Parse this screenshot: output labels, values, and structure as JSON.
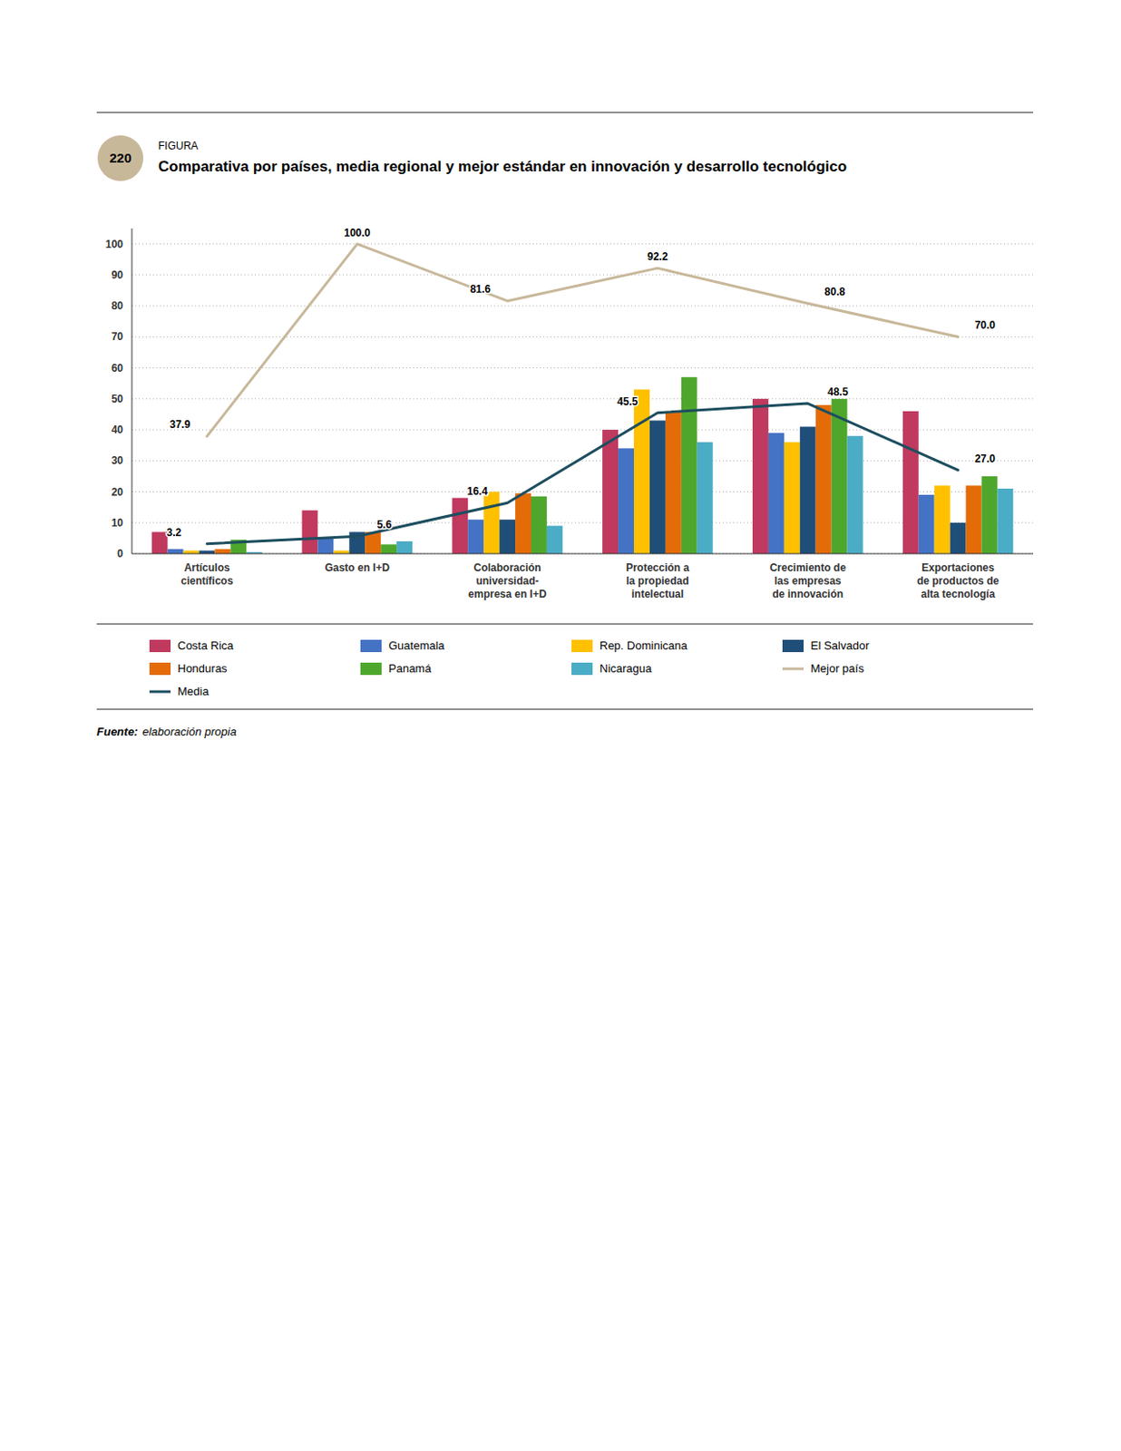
{
  "chart_data": {
    "type": "bar",
    "title": "Comparativa por países, media regional y mejor estándar en innovación y desarrollo tecnológico",
    "annotations": [
      "220",
      "FIGURA",
      "Fuente:",
      "elaboración propia"
    ],
    "categories": [
      "Artículos\ncientíficos",
      "Gasto en I+D",
      "Colaboración\nuniversidad-\nempresa en I+D",
      "Protección a\nla propiedad\nintelectual",
      "Crecimiento de\nlas empresas\nde innovación",
      "Exportaciones\nde productos de\nalta tecnología"
    ],
    "series": [
      {
        "name": "Costa Rica",
        "type": "bar",
        "color": "#c0395e",
        "values": [
          7.0,
          14.0,
          18.0,
          40.0,
          50.0,
          46.0
        ]
      },
      {
        "name": "Guatemala",
        "type": "bar",
        "color": "#4472c4",
        "values": [
          1.5,
          5.0,
          11.0,
          34.0,
          39.0,
          19.0
        ]
      },
      {
        "name": "Rep. Dominicana",
        "type": "bar",
        "color": "#ffc000",
        "values": [
          1.0,
          1.0,
          20.0,
          53.0,
          36.0,
          22.0
        ]
      },
      {
        "name": "El Salvador",
        "type": "bar",
        "color": "#1f4e79",
        "values": [
          1.0,
          7.0,
          11.0,
          43.0,
          41.0,
          10.0
        ]
      },
      {
        "name": "Honduras",
        "type": "bar",
        "color": "#e36c09",
        "values": [
          1.5,
          7.0,
          19.5,
          46.0,
          48.0,
          22.0
        ]
      },
      {
        "name": "Panamá",
        "type": "bar",
        "color": "#4ea72c",
        "values": [
          4.5,
          3.0,
          18.5,
          57.0,
          50.0,
          25.0
        ]
      },
      {
        "name": "Nicaragua",
        "type": "bar",
        "color": "#4bacc6",
        "values": [
          0.5,
          4.0,
          9.0,
          36.0,
          38.0,
          21.0
        ]
      },
      {
        "name": "Mejor país",
        "type": "line",
        "color": "#c8b89a",
        "data_labels": true,
        "values": [
          37.9,
          100.0,
          81.6,
          92.2,
          80.8,
          70.0
        ],
        "value_labels": [
          "37.9",
          "100.0",
          "81.6",
          "92.2",
          "80.8",
          "70.0"
        ]
      },
      {
        "name": "Media",
        "type": "line",
        "color": "#1d4e5f",
        "data_labels": true,
        "values": [
          3.2,
          5.6,
          16.4,
          45.5,
          48.5,
          27.0
        ],
        "value_labels": [
          "3.2",
          "5.6",
          "16.4",
          "45.5",
          "48.5",
          "27.0"
        ]
      }
    ],
    "ylim": [
      0,
      105
    ],
    "yticks": [
      0,
      10,
      20,
      30,
      40,
      50,
      60,
      70,
      80,
      90,
      100
    ],
    "grid": true,
    "legend": "bottom"
  }
}
